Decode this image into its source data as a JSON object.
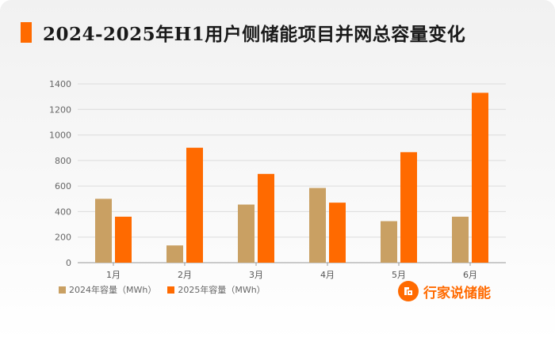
{
  "colors": {
    "accent": "#ff6a00",
    "series_2024": "#c9a063",
    "series_2025": "#ff6a00",
    "axis": "#999999",
    "grid": "#dcdcdc"
  },
  "header": {
    "title": "2024-2025年H1用户侧储能项目并网总容量变化"
  },
  "brand": {
    "name": "行家说储能",
    "icon": "brand-logo-icon"
  },
  "chart_data": {
    "type": "bar",
    "title": "2024-2025年H1用户侧储能项目并网总容量变化",
    "xlabel": "",
    "ylabel": "",
    "categories": [
      "1月",
      "2月",
      "3月",
      "4月",
      "5月",
      "6月"
    ],
    "ylim": [
      0,
      1400
    ],
    "yticks": [
      0,
      200,
      400,
      600,
      800,
      1000,
      1200,
      1400
    ],
    "grid": true,
    "legend_position": "bottom-left",
    "series": [
      {
        "name": "2024年容量（MWh）",
        "values": [
          500,
          135,
          455,
          585,
          325,
          360
        ]
      },
      {
        "name": "2025年容量（MWh）",
        "values": [
          360,
          900,
          695,
          470,
          865,
          1330
        ]
      }
    ]
  }
}
